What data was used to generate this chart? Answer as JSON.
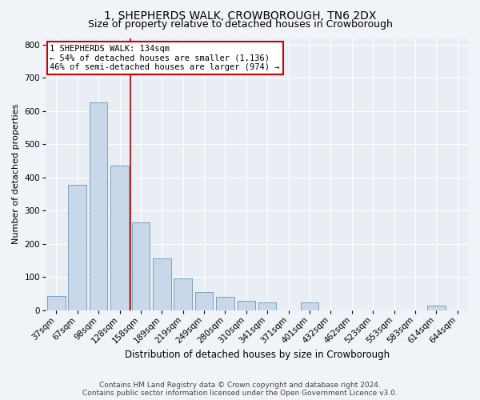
{
  "title": "1, SHEPHERDS WALK, CROWBOROUGH, TN6 2DX",
  "subtitle": "Size of property relative to detached houses in Crowborough",
  "xlabel": "Distribution of detached houses by size in Crowborough",
  "ylabel": "Number of detached properties",
  "bar_labels": [
    "37sqm",
    "67sqm",
    "98sqm",
    "128sqm",
    "158sqm",
    "189sqm",
    "219sqm",
    "249sqm",
    "280sqm",
    "310sqm",
    "341sqm",
    "371sqm",
    "401sqm",
    "432sqm",
    "462sqm",
    "523sqm",
    "553sqm",
    "583sqm",
    "614sqm",
    "644sqm"
  ],
  "bar_values": [
    42,
    378,
    625,
    435,
    265,
    155,
    96,
    54,
    40,
    28,
    24,
    0,
    24,
    0,
    0,
    0,
    0,
    0,
    14,
    0
  ],
  "bar_color": "#c8d8e8",
  "bar_edge_color": "#7aa0be",
  "vline_x": 3.5,
  "vline_color": "#aa0000",
  "annotation_text": "1 SHEPHERDS WALK: 134sqm\n← 54% of detached houses are smaller (1,136)\n46% of semi-detached houses are larger (974) →",
  "annotation_box_color": "#ffffff",
  "annotation_box_edge_color": "#cc0000",
  "ylim": [
    0,
    820
  ],
  "yticks": [
    0,
    100,
    200,
    300,
    400,
    500,
    600,
    700,
    800
  ],
  "footer_text": "Contains HM Land Registry data © Crown copyright and database right 2024.\nContains public sector information licensed under the Open Government Licence v3.0.",
  "title_fontsize": 10,
  "subtitle_fontsize": 9,
  "xlabel_fontsize": 8.5,
  "ylabel_fontsize": 8,
  "tick_fontsize": 7.5,
  "annotation_fontsize": 7.5,
  "footer_fontsize": 6.5,
  "bg_color": "#e8eef4",
  "fig_bg_color": "#f0f4f8"
}
